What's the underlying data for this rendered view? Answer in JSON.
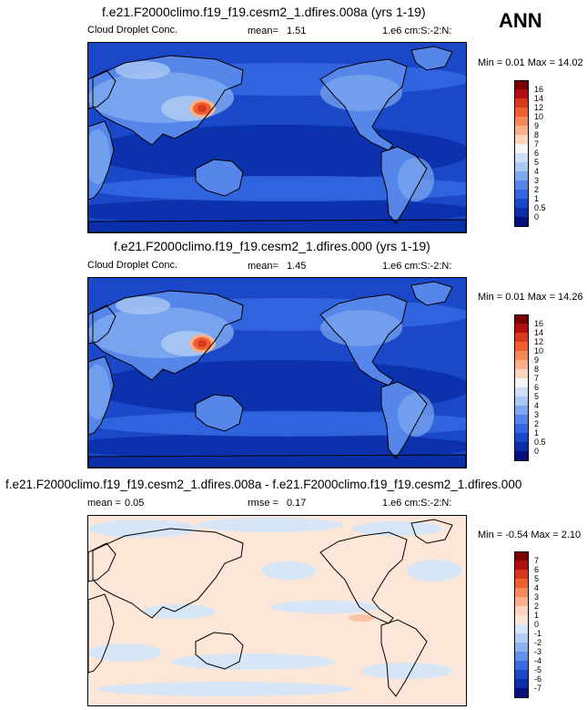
{
  "season": "ANN",
  "panels": [
    {
      "title": "f.e21.F2000climo.f19_f19.cesm2_1.dfires.008a (yrs 1-19)",
      "left_label": "Cloud Droplet Conc.",
      "mean_label": "mean=",
      "mean_value": "1.51",
      "units_label": "1.e6 cm:S:-2:N:",
      "minmax": "Min =  0.01 Max =  14.02",
      "colorbar": {
        "labels": [
          "16",
          "14",
          "12",
          "10",
          "9",
          "8",
          "7",
          "6",
          "5",
          "4",
          "3",
          "2",
          "1",
          "0.5",
          "0"
        ],
        "colors": [
          "#7a0000",
          "#b01010",
          "#d8381c",
          "#ee6030",
          "#f5895a",
          "#f9b08a",
          "#fcd5bd",
          "#f4f4f4",
          "#cfe0f6",
          "#a9c8f2",
          "#7ea8ee",
          "#5686ea",
          "#3366e0",
          "#1a48c8",
          "#0a2fa8",
          "#05107a"
        ]
      },
      "map_style": "full"
    },
    {
      "title": "f.e21.F2000climo.f19_f19.cesm2_1.dfires.000 (yrs 1-19)",
      "left_label": "Cloud Droplet Conc.",
      "mean_label": "mean=",
      "mean_value": "1.45",
      "units_label": "1.e6 cm:S:-2:N:",
      "minmax": "Min =  0.01 Max =  14.26",
      "colorbar": {
        "labels": [
          "16",
          "14",
          "12",
          "10",
          "9",
          "8",
          "7",
          "6",
          "5",
          "4",
          "3",
          "2",
          "1",
          "0.5",
          "0"
        ],
        "colors": [
          "#7a0000",
          "#b01010",
          "#d8381c",
          "#ee6030",
          "#f5895a",
          "#f9b08a",
          "#fcd5bd",
          "#f4f4f4",
          "#cfe0f6",
          "#a9c8f2",
          "#7ea8ee",
          "#5686ea",
          "#3366e0",
          "#1a48c8",
          "#0a2fa8",
          "#05107a"
        ]
      },
      "map_style": "full"
    },
    {
      "title": "f.e21.F2000climo.f19_f19.cesm2_1.dfires.008a - f.e21.F2000climo.f19_f19.cesm2_1.dfires.000",
      "left_label": "mean =",
      "left_value": "0.05",
      "rmse_label": "rmse =",
      "rmse_value": "0.17",
      "units_label": "1.e6 cm:S:-2:N:",
      "minmax": "Min = -0.54 Max =  2.10",
      "colorbar": {
        "labels": [
          "7",
          "6",
          "5",
          "4",
          "3",
          "2",
          "1",
          "0",
          "-1",
          "-2",
          "-3",
          "-4",
          "-5",
          "-6",
          "-7"
        ],
        "colors": [
          "#7a0000",
          "#b01010",
          "#d8381c",
          "#ee6030",
          "#f5895a",
          "#f9b08a",
          "#fcd5bd",
          "#fbe6d8",
          "#d6e6f7",
          "#b5cff3",
          "#8cb1ee",
          "#6290ea",
          "#3a6ce0",
          "#1a48c8",
          "#0a2fa8",
          "#05107a"
        ]
      },
      "map_style": "diff"
    }
  ]
}
